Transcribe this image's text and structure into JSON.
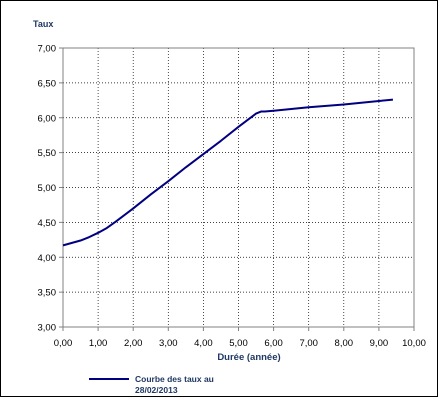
{
  "chart_data": {
    "type": "line",
    "ylabel": "Taux",
    "xlabel": "Durée (année)",
    "xlim": [
      0,
      10
    ],
    "ylim": [
      3,
      7
    ],
    "x_ticks": [
      "0,00",
      "1,00",
      "2,00",
      "3,00",
      "4,00",
      "5,00",
      "6,00",
      "7,00",
      "8,00",
      "9,00",
      "10,00"
    ],
    "y_ticks": [
      "3,00",
      "3,50",
      "4,00",
      "4,50",
      "5,00",
      "5,50",
      "6,00",
      "6,50",
      "7,00"
    ],
    "grid": true,
    "legend_position": "bottom-left",
    "series": [
      {
        "name": "Courbe des taux au 28/02/2013",
        "name_lines": [
          "Courbe des taux au",
          "28/02/2013"
        ],
        "color": "#000080",
        "x": [
          0.0,
          0.5,
          0.75,
          1.0,
          1.25,
          1.5,
          2.0,
          2.5,
          3.0,
          3.5,
          4.0,
          4.5,
          5.0,
          5.5,
          5.65,
          5.75,
          6.0,
          7.0,
          8.0,
          9.0,
          9.4
        ],
        "y": [
          4.17,
          4.24,
          4.29,
          4.35,
          4.42,
          4.51,
          4.7,
          4.9,
          5.09,
          5.29,
          5.48,
          5.67,
          5.87,
          6.06,
          6.09,
          6.09,
          6.1,
          6.15,
          6.19,
          6.24,
          6.26
        ]
      }
    ]
  }
}
